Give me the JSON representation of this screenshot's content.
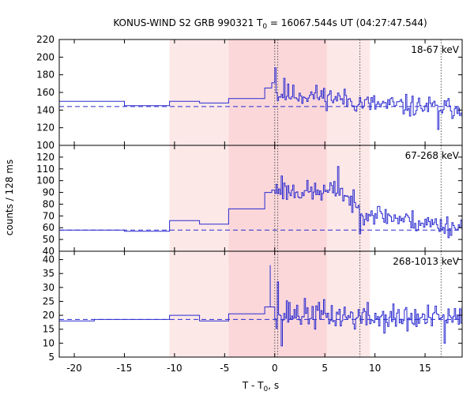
{
  "chart_data": {
    "type": "line",
    "title_prefix": "KONUS-WIND S2 GRB 990321 T",
    "title_sub": "0",
    "title_suffix": " = 16067.544s UT (04:27:47.544)",
    "xlabel_prefix": "T - T",
    "xlabel_sub": "0",
    "xlabel_suffix": ", s",
    "ylabel": "counts / 128 ms",
    "xlim": [
      -21.5,
      18.7
    ],
    "xticks": [
      -20,
      -15,
      -10,
      -5,
      0,
      5,
      10,
      15
    ],
    "xtick_labels": [
      "-20",
      "-15",
      "-10",
      "-5",
      "0",
      "5",
      "10",
      "15"
    ],
    "shaded_intervals": [
      {
        "from": -10.5,
        "to": 9.5,
        "color": "#fde8e8"
      },
      {
        "from": -4.6,
        "to": 5.2,
        "color": "#fbd7da"
      }
    ],
    "vlines_dotted": [
      0.0,
      0.3,
      8.5,
      16.6
    ],
    "line_color": "#2b2bd0",
    "panels": [
      {
        "label": "18-67 keV",
        "ylim": [
          100,
          220
        ],
        "yticks": [
          100,
          120,
          140,
          160,
          180,
          200,
          220
        ],
        "ytick_labels": [
          "100",
          "120",
          "140",
          "160",
          "180",
          "200",
          "220"
        ],
        "background": 144,
        "steps": [
          {
            "x0": -21.5,
            "x1": -18.0,
            "y": 150
          },
          {
            "x0": -18.0,
            "x1": -15.0,
            "y": 150
          },
          {
            "x0": -15.0,
            "x1": -10.5,
            "y": 145
          },
          {
            "x0": -10.5,
            "x1": -7.5,
            "y": 150
          },
          {
            "x0": -7.5,
            "x1": -4.6,
            "y": 148
          },
          {
            "x0": -4.6,
            "x1": -1.0,
            "y": 153
          },
          {
            "x0": -1.0,
            "x1": -0.3,
            "y": 165
          },
          {
            "x0": -0.3,
            "x1": 0.0,
            "y": 171
          }
        ],
        "noisy": {
          "start": 0.0,
          "end": 18.7,
          "dt": 0.128,
          "level": [
            [
              0,
              158
            ],
            [
              5,
              156
            ],
            [
              9,
              147
            ],
            [
              14,
              144
            ],
            [
              18.7,
              142
            ]
          ],
          "amp": 12,
          "spikes": [
            [
              0.05,
              188
            ],
            [
              0.9,
              176
            ],
            [
              16.3,
              118
            ]
          ],
          "seed": 11
        }
      },
      {
        "label": "67-268 keV",
        "ylim": [
          40,
          130
        ],
        "yticks": [
          40,
          50,
          60,
          70,
          80,
          90,
          100,
          110,
          120
        ],
        "ytick_labels": [
          "40",
          "50",
          "60",
          "70",
          "80",
          "90",
          "100",
          "110",
          "120"
        ],
        "background": 58,
        "steps": [
          {
            "x0": -21.5,
            "x1": -18.0,
            "y": 58
          },
          {
            "x0": -18.0,
            "x1": -15.0,
            "y": 58
          },
          {
            "x0": -15.0,
            "x1": -10.5,
            "y": 57
          },
          {
            "x0": -10.5,
            "x1": -7.5,
            "y": 66
          },
          {
            "x0": -7.5,
            "x1": -4.6,
            "y": 63
          },
          {
            "x0": -4.6,
            "x1": -1.0,
            "y": 76
          },
          {
            "x0": -1.0,
            "x1": -0.3,
            "y": 90
          },
          {
            "x0": -0.3,
            "x1": 0.0,
            "y": 92
          }
        ],
        "noisy": {
          "start": 0.0,
          "end": 18.7,
          "dt": 0.128,
          "level": [
            [
              0,
              92
            ],
            [
              5,
              90
            ],
            [
              6.5,
              92
            ],
            [
              8.3,
              75
            ],
            [
              11,
              70
            ],
            [
              14,
              65
            ],
            [
              18.7,
              60
            ]
          ],
          "amp": 9,
          "spikes": [
            [
              6.3,
              112
            ],
            [
              0.7,
              104
            ],
            [
              8.4,
              55
            ]
          ],
          "seed": 23
        }
      },
      {
        "label": "268-1013 keV",
        "ylim": [
          5,
          43
        ],
        "yticks": [
          5,
          10,
          15,
          20,
          25,
          30,
          35,
          40
        ],
        "ytick_labels": [
          "5",
          "10",
          "15",
          "20",
          "25",
          "30",
          "35",
          "40"
        ],
        "background": 18.5,
        "steps": [
          {
            "x0": -21.5,
            "x1": -18.0,
            "y": 18
          },
          {
            "x0": -18.0,
            "x1": -15.0,
            "y": 18.5
          },
          {
            "x0": -15.0,
            "x1": -10.5,
            "y": 18.5
          },
          {
            "x0": -10.5,
            "x1": -7.5,
            "y": 20
          },
          {
            "x0": -7.5,
            "x1": -4.6,
            "y": 18
          },
          {
            "x0": -4.6,
            "x1": -1.0,
            "y": 20.5
          },
          {
            "x0": -1.0,
            "x1": -0.3,
            "y": 23
          },
          {
            "x0": -0.3,
            "x1": 0.0,
            "y": 23
          }
        ],
        "noisy": {
          "start": 0.0,
          "end": 18.7,
          "dt": 0.128,
          "level": [
            [
              0,
              21
            ],
            [
              5,
              20
            ],
            [
              10,
              19
            ],
            [
              18.7,
              18.5
            ]
          ],
          "amp": 5,
          "spikes": [
            [
              -0.45,
              38
            ],
            [
              0.2,
              32
            ],
            [
              0.6,
              9
            ],
            [
              16.9,
              10
            ]
          ],
          "seed": 37
        }
      }
    ]
  }
}
